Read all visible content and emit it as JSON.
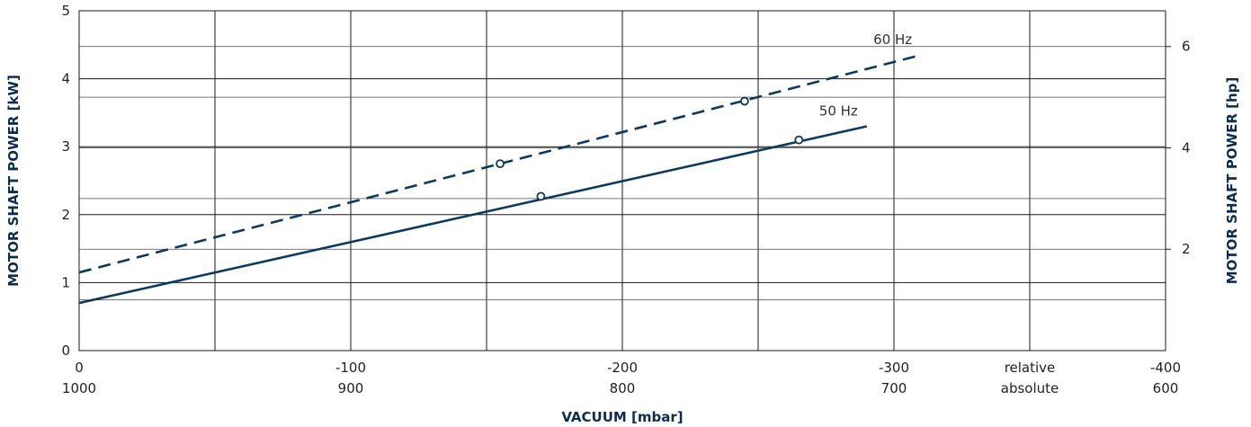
{
  "chart_data": {
    "type": "line",
    "xlabel": "VACUUM  [mbar]",
    "ylabel_left": "MOTOR SHAFT POWER  [kW]",
    "ylabel_right": "MOTOR SHAFT POWER  [hp]",
    "xlim": [
      0,
      -400
    ],
    "ylim_left": [
      0,
      5
    ],
    "ylim_right_hp": [
      0,
      6.705
    ],
    "x_ticks_relative": [
      "0",
      "-100",
      "-200",
      "-300",
      "-400"
    ],
    "x_ticks_absolute": [
      "1000",
      "900",
      "800",
      "700",
      "600"
    ],
    "x_row_labels": {
      "relative": "relative",
      "absolute": "absolute"
    },
    "y_ticks_left": [
      "0",
      "1",
      "2",
      "3",
      "4",
      "5"
    ],
    "y_ticks_right": [
      "2",
      "4",
      "6"
    ],
    "grid": true,
    "series": [
      {
        "name": "50 Hz",
        "style": "solid",
        "x": [
          0,
          -290
        ],
        "y": [
          0.7,
          3.3
        ],
        "markers": [
          {
            "x": -170,
            "y": 2.27
          },
          {
            "x": -265,
            "y": 3.1
          }
        ]
      },
      {
        "name": "60 Hz",
        "style": "dashed",
        "x": [
          0,
          -310
        ],
        "y": [
          1.15,
          4.35
        ],
        "markers": [
          {
            "x": -155,
            "y": 2.75
          },
          {
            "x": -245,
            "y": 3.67
          }
        ]
      }
    ],
    "line_color": "#0c3a5e"
  }
}
